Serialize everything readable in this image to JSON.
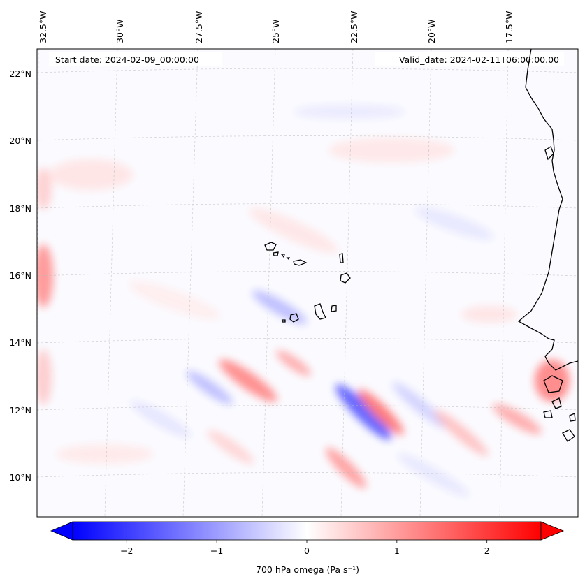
{
  "header": {
    "start_date": "Start date: 2024-02-09_00:00:00",
    "valid_date": "Valid_date: 2024-02-11T06:00:00.00"
  },
  "axes": {
    "lon_labels": [
      "32.5°W",
      "30°W",
      "27.5°W",
      "25°W",
      "22.5°W",
      "20°W",
      "17.5°W"
    ],
    "lat_labels": [
      "22°N",
      "20°N",
      "18°N",
      "16°N",
      "14°N",
      "12°N",
      "10°N"
    ]
  },
  "colorbar": {
    "ticks": [
      "−2",
      "−1",
      "0",
      "1",
      "2"
    ],
    "tick_values": [
      -2,
      -1,
      0,
      1,
      2
    ],
    "range": [
      -2.6,
      2.6
    ],
    "label": "700 hPa omega (Pa s⁻¹)",
    "colormap": "bwr",
    "extend": "both"
  },
  "colors": {
    "negative": "#0000ff",
    "zero": "#ffffff",
    "positive": "#ff0000",
    "coastline": "#000000"
  }
}
